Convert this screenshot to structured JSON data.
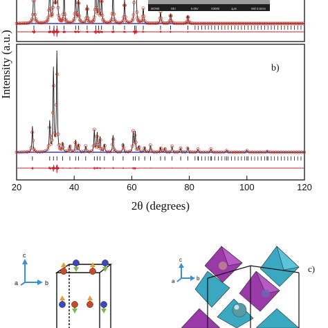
{
  "chart_data": [
    {
      "type": "line",
      "panel_label": "",
      "xlim": [
        20,
        120
      ],
      "series": [
        {
          "peaks": [
            {
              "x": 26.0,
              "y": 0.62
            },
            {
              "x": 31.5,
              "y": 0.55
            },
            {
              "x": 33.0,
              "y": 0.95
            },
            {
              "x": 34.0,
              "y": 1.0
            },
            {
              "x": 36.5,
              "y": 0.38
            },
            {
              "x": 40.5,
              "y": 0.4
            },
            {
              "x": 41.5,
              "y": 0.3
            },
            {
              "x": 44.5,
              "y": 0.22
            },
            {
              "x": 47.5,
              "y": 0.58
            },
            {
              "x": 48.5,
              "y": 0.45
            },
            {
              "x": 49.5,
              "y": 0.32
            },
            {
              "x": 53.5,
              "y": 0.42
            },
            {
              "x": 57.5,
              "y": 0.28
            },
            {
              "x": 61.0,
              "y": 0.5
            },
            {
              "x": 61.5,
              "y": 0.42
            },
            {
              "x": 64.0,
              "y": 0.18
            },
            {
              "x": 70.0,
              "y": 0.14
            },
            {
              "x": 73.5,
              "y": 0.12
            },
            {
              "x": 79.5,
              "y": 0.1
            }
          ]
        }
      ]
    },
    {
      "type": "line",
      "panel_label": "b)",
      "xlabel": "2θ (degrees)",
      "ylabel": "Intensity (a.u.)",
      "xlim": [
        20,
        120
      ],
      "xticks": [
        "20",
        "40",
        "60",
        "80",
        "100",
        "120"
      ],
      "series": [
        {
          "peaks": [
            {
              "x": 25.5,
              "y": 0.26
            },
            {
              "x": 31.5,
              "y": 0.3
            },
            {
              "x": 32.8,
              "y": 0.83
            },
            {
              "x": 34.0,
              "y": 1.0
            },
            {
              "x": 36.0,
              "y": 0.09
            },
            {
              "x": 38.5,
              "y": 0.07
            },
            {
              "x": 40.5,
              "y": 0.12
            },
            {
              "x": 41.5,
              "y": 0.08
            },
            {
              "x": 44.0,
              "y": 0.06
            },
            {
              "x": 47.0,
              "y": 0.22
            },
            {
              "x": 48.0,
              "y": 0.19
            },
            {
              "x": 49.0,
              "y": 0.15
            },
            {
              "x": 50.5,
              "y": 0.08
            },
            {
              "x": 53.5,
              "y": 0.17
            },
            {
              "x": 57.0,
              "y": 0.09
            },
            {
              "x": 60.5,
              "y": 0.2
            },
            {
              "x": 61.2,
              "y": 0.2
            },
            {
              "x": 62.5,
              "y": 0.06
            },
            {
              "x": 64.5,
              "y": 0.05
            },
            {
              "x": 66.5,
              "y": 0.07
            },
            {
              "x": 70.0,
              "y": 0.05
            },
            {
              "x": 71.5,
              "y": 0.04
            },
            {
              "x": 74.0,
              "y": 0.06
            },
            {
              "x": 77.0,
              "y": 0.04
            },
            {
              "x": 79.5,
              "y": 0.05
            },
            {
              "x": 83.0,
              "y": 0.03
            },
            {
              "x": 87.5,
              "y": 0.03
            },
            {
              "x": 93.0,
              "y": 0.02
            },
            {
              "x": 100.0,
              "y": 0.02
            },
            {
              "x": 107.0,
              "y": 0.02
            }
          ]
        }
      ]
    }
  ],
  "inset": {
    "caption_items": [
      "MONE",
      "SEI",
      "5.0kV",
      "X3000",
      "1μm",
      "WD 8.5mm"
    ]
  },
  "structures": {
    "left_axes": {
      "c": "c",
      "a": "a",
      "b": "b"
    },
    "right_axes": {
      "c": "c",
      "a": "a",
      "b": "b"
    },
    "right_label": "c)"
  },
  "colors": {
    "observed": "#d23a2a",
    "calculated": "#111111",
    "background": "#3c3cc8",
    "difference": "#c8202a",
    "octa_purple": "#9a3aa8",
    "octa_cyan": "#3aa8c0"
  }
}
